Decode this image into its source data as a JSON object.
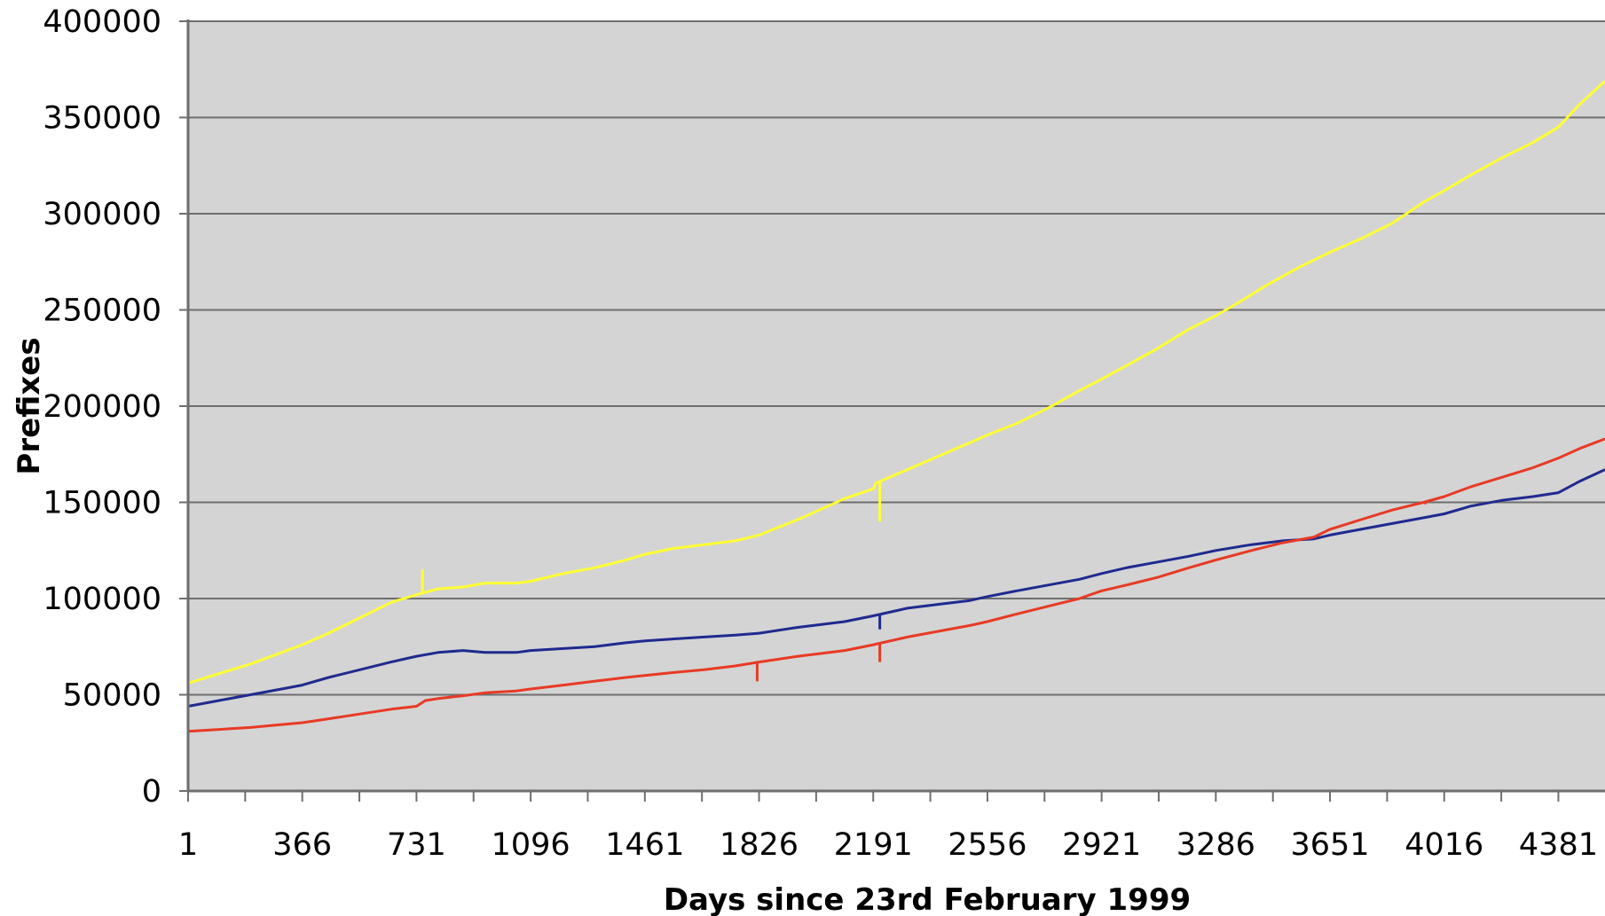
{
  "chart_data": {
    "type": "line",
    "title": "",
    "xlabel": "Days since 23rd February 1999",
    "ylabel": "Prefixes",
    "xlim": [
      1,
      4530
    ],
    "ylim": [
      0,
      400000
    ],
    "x_ticks": [
      1,
      366,
      731,
      1096,
      1461,
      1826,
      2191,
      2556,
      2921,
      3286,
      3651,
      4016,
      4381
    ],
    "y_ticks": [
      0,
      50000,
      100000,
      150000,
      200000,
      250000,
      300000,
      350000,
      400000
    ],
    "x_minor_tick_step": 182.5,
    "grid": "horizontal",
    "legend": "none",
    "plot_background": "#d4d4d4",
    "gridline_color": "#6e6e6e",
    "series": [
      {
        "color": "#ffff33",
        "x": [
          1,
          100,
          200,
          300,
          366,
          450,
          550,
          650,
          731,
          800,
          880,
          950,
          1050,
          1096,
          1200,
          1300,
          1400,
          1461,
          1550,
          1650,
          1750,
          1826,
          1950,
          2100,
          2191,
          2200,
          2300,
          2400,
          2500,
          2556,
          2650,
          2750,
          2850,
          2921,
          3000,
          3100,
          3200,
          3286,
          3350,
          3450,
          3550,
          3651,
          3750,
          3850,
          3950,
          4016,
          4100,
          4200,
          4300,
          4381,
          4450,
          4530
        ],
        "y": [
          56000,
          61000,
          66000,
          72000,
          76000,
          82000,
          90000,
          98000,
          102000,
          105000,
          106000,
          108000,
          108000,
          109000,
          113000,
          116000,
          120000,
          123000,
          126000,
          128000,
          130000,
          133000,
          141000,
          152000,
          157000,
          160000,
          167000,
          174000,
          181000,
          185000,
          191000,
          199000,
          208000,
          214000,
          221000,
          230000,
          240000,
          247000,
          253000,
          263000,
          272000,
          280000,
          287000,
          295000,
          306000,
          312000,
          320000,
          329000,
          337000,
          345000,
          357000,
          369000
        ],
        "spikes": [
          {
            "x": 750,
            "y": 115000
          },
          {
            "x": 2212,
            "y": 140000
          }
        ]
      },
      {
        "color": "#1f2a8f",
        "x": [
          1,
          100,
          200,
          300,
          366,
          450,
          550,
          650,
          731,
          800,
          880,
          950,
          1050,
          1096,
          1200,
          1300,
          1400,
          1461,
          1550,
          1650,
          1750,
          1826,
          1950,
          2100,
          2191,
          2300,
          2400,
          2500,
          2556,
          2650,
          2750,
          2850,
          2921,
          3000,
          3100,
          3200,
          3286,
          3400,
          3500,
          3600,
          3651,
          3750,
          3850,
          3950,
          4016,
          4100,
          4200,
          4300,
          4381,
          4450,
          4530
        ],
        "y": [
          44000,
          47000,
          50000,
          53000,
          55000,
          59000,
          63000,
          67000,
          70000,
          72000,
          73000,
          72000,
          72000,
          73000,
          74000,
          75000,
          77000,
          78000,
          79000,
          80000,
          81000,
          82000,
          85000,
          88000,
          91000,
          95000,
          97000,
          99000,
          101000,
          104000,
          107000,
          110000,
          113000,
          116000,
          119000,
          122000,
          125000,
          128000,
          130000,
          131000,
          133000,
          136000,
          139000,
          142000,
          144000,
          148000,
          151000,
          153000,
          155000,
          161000,
          167000
        ],
        "spikes": [
          {
            "x": 2212,
            "y": 84000
          }
        ]
      },
      {
        "color": "#e83a24",
        "x": [
          1,
          100,
          200,
          300,
          366,
          450,
          550,
          650,
          731,
          760,
          800,
          880,
          950,
          1050,
          1096,
          1200,
          1300,
          1400,
          1461,
          1550,
          1650,
          1750,
          1826,
          1950,
          2100,
          2191,
          2300,
          2400,
          2500,
          2556,
          2650,
          2750,
          2850,
          2921,
          3000,
          3100,
          3200,
          3286,
          3400,
          3500,
          3600,
          3651,
          3750,
          3850,
          3950,
          4016,
          4100,
          4200,
          4300,
          4381,
          4450,
          4530
        ],
        "y": [
          31000,
          32000,
          33000,
          34500,
          35500,
          37500,
          40000,
          42500,
          44000,
          47000,
          48000,
          49500,
          51000,
          52000,
          53000,
          55000,
          57000,
          59000,
          60000,
          61500,
          63000,
          65000,
          67000,
          70000,
          73000,
          76000,
          80000,
          83000,
          86000,
          88000,
          92000,
          96000,
          100000,
          104000,
          107000,
          111000,
          116000,
          120000,
          125000,
          129000,
          132000,
          136000,
          141000,
          146000,
          150000,
          153000,
          158000,
          163000,
          168000,
          173000,
          178000,
          183000
        ],
        "spikes": [
          {
            "x": 1820,
            "y": 57000
          },
          {
            "x": 2212,
            "y": 67000
          },
          {
            "x": 3956,
            "y": 149000
          }
        ]
      }
    ]
  }
}
